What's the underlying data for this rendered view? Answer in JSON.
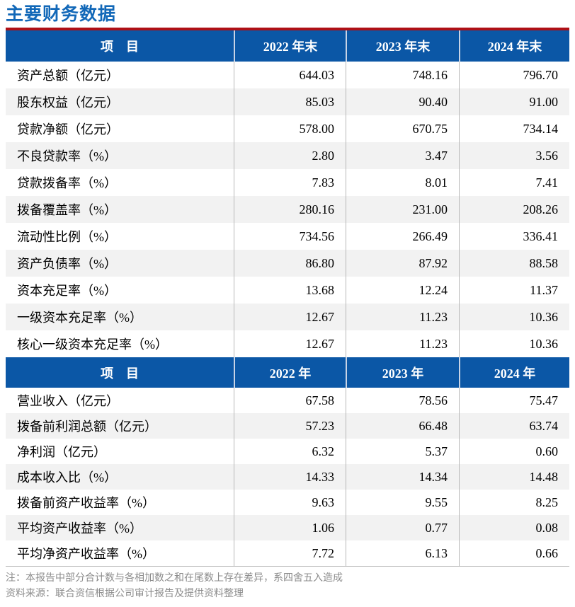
{
  "page": {
    "title": "主要财务数据",
    "note": "注：本报告中部分合计数与各相加数之和在尾数上存在差异，系四舍五入造成",
    "source": "资料来源：联合资信根据公司审计报告及提供资料整理"
  },
  "colors": {
    "header_blue": "#0B57A6",
    "title_blue": "#1268B8",
    "accent_red": "#AE1016",
    "row_alt_gray": "#F2F2F2",
    "note_gray": "#8C8C8C"
  },
  "table_year_end": {
    "headers": [
      "项　目",
      "2022 年末",
      "2023 年末",
      "2024 年末"
    ],
    "rows": [
      {
        "label": "资产总额（亿元）",
        "values": [
          "644.03",
          "748.16",
          "796.70"
        ]
      },
      {
        "label": "股东权益（亿元）",
        "values": [
          "85.03",
          "90.40",
          "91.00"
        ]
      },
      {
        "label": "贷款净额（亿元）",
        "values": [
          "578.00",
          "670.75",
          "734.14"
        ]
      },
      {
        "label": "不良贷款率（%）",
        "values": [
          "2.80",
          "3.47",
          "3.56"
        ]
      },
      {
        "label": "贷款拨备率（%）",
        "values": [
          "7.83",
          "8.01",
          "7.41"
        ]
      },
      {
        "label": "拨备覆盖率（%）",
        "values": [
          "280.16",
          "231.00",
          "208.26"
        ]
      },
      {
        "label": "流动性比例（%）",
        "values": [
          "734.56",
          "266.49",
          "336.41"
        ]
      },
      {
        "label": "资产负债率（%）",
        "values": [
          "86.80",
          "87.92",
          "88.58"
        ]
      },
      {
        "label": "资本充足率（%）",
        "values": [
          "13.68",
          "12.24",
          "11.37"
        ]
      },
      {
        "label": "一级资本充足率（%）",
        "values": [
          "12.67",
          "11.23",
          "10.36"
        ]
      },
      {
        "label": "核心一级资本充足率（%）",
        "values": [
          "12.67",
          "11.23",
          "10.36"
        ]
      }
    ]
  },
  "table_annual": {
    "headers": [
      "项　目",
      "2022 年",
      "2023 年",
      "2024 年"
    ],
    "rows": [
      {
        "label": "营业收入（亿元）",
        "values": [
          "67.58",
          "78.56",
          "75.47"
        ]
      },
      {
        "label": "拨备前利润总额（亿元）",
        "values": [
          "57.23",
          "66.48",
          "63.74"
        ]
      },
      {
        "label": "净利润（亿元）",
        "values": [
          "6.32",
          "5.37",
          "0.60"
        ]
      },
      {
        "label": "成本收入比（%）",
        "values": [
          "14.33",
          "14.34",
          "14.48"
        ]
      },
      {
        "label": "拨备前资产收益率（%）",
        "values": [
          "9.63",
          "9.55",
          "8.25"
        ]
      },
      {
        "label": "平均资产收益率（%）",
        "values": [
          "1.06",
          "0.77",
          "0.08"
        ]
      },
      {
        "label": "平均净资产收益率（%）",
        "values": [
          "7.72",
          "6.13",
          "0.66"
        ]
      }
    ]
  }
}
